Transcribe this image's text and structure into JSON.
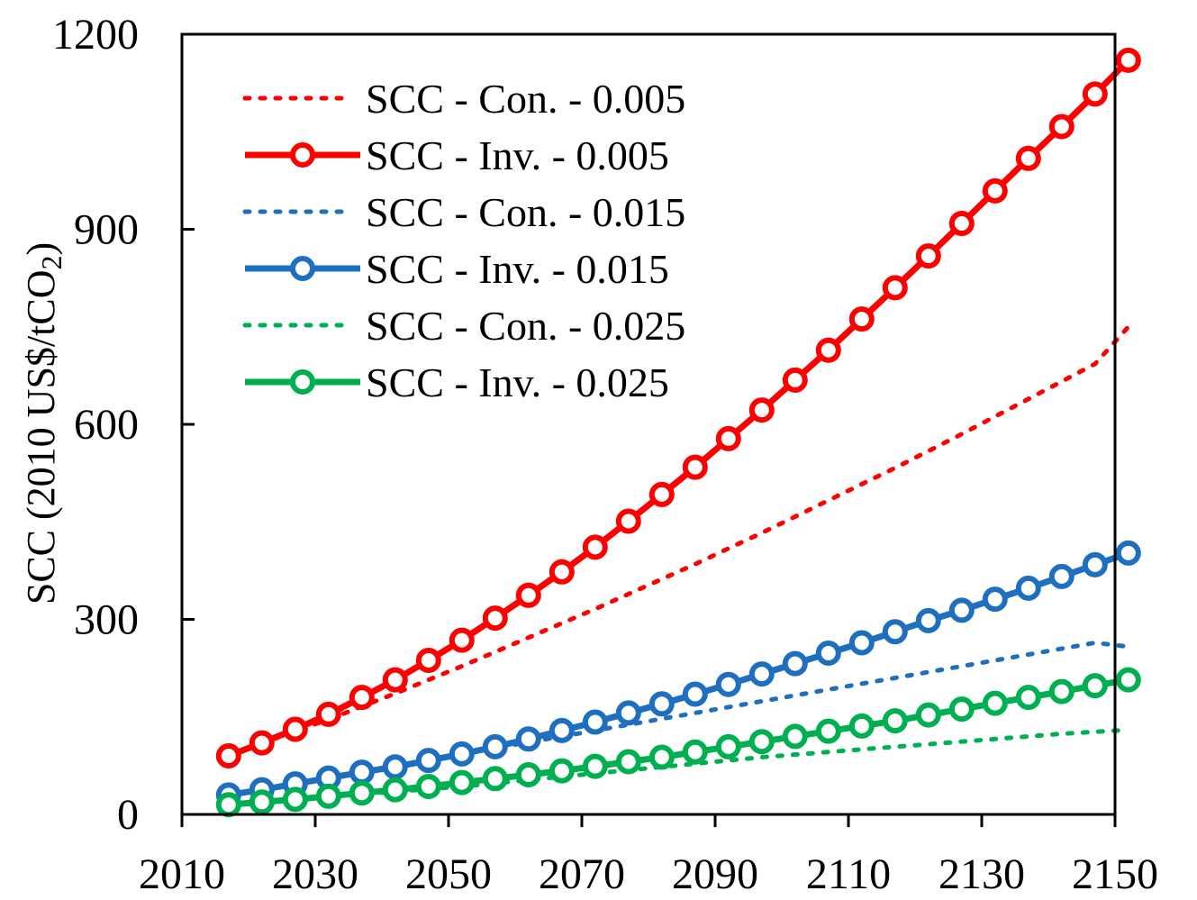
{
  "chart_data": {
    "type": "line",
    "title": "",
    "xlabel": "",
    "ylabel": "SCC (2010 US$/tCO",
    "ylabel_sub": "2",
    "ylabel_end": ")",
    "xlim": [
      2010,
      2150
    ],
    "ylim": [
      0,
      1200
    ],
    "xticks": [
      "2010",
      "2030",
      "2050",
      "2070",
      "2090",
      "2110",
      "2130",
      "2150"
    ],
    "yticks": [
      "0",
      "300",
      "600",
      "900",
      "1200"
    ],
    "x": [
      2017,
      2022,
      2027,
      2032,
      2037,
      2042,
      2047,
      2052,
      2057,
      2062,
      2067,
      2072,
      2077,
      2082,
      2087,
      2092,
      2097,
      2102,
      2107,
      2112,
      2117,
      2122,
      2127,
      2132,
      2137,
      2142,
      2147,
      2152
    ],
    "legend_position": "top-left",
    "series": [
      {
        "name": "SCC - Con. - 0.005",
        "style": "dotted",
        "color": "#ff0000",
        "values": [
          90,
          110,
          128,
          146,
          166,
          186,
          207,
          228,
          250,
          272,
          294,
          316,
          339,
          362,
          385,
          409,
          433,
          458,
          483,
          508,
          533,
          559,
          585,
          612,
          639,
          666,
          693,
          750
        ]
      },
      {
        "name": "SCC - Inv. - 0.005",
        "style": "solid-circle",
        "color": "#ff0000",
        "values": [
          90,
          110,
          131,
          154,
          180,
          207,
          237,
          268,
          302,
          337,
          373,
          411,
          451,
          492,
          534,
          578,
          622,
          668,
          714,
          762,
          810,
          859,
          909,
          959,
          1009,
          1058,
          1108,
          1160
        ]
      },
      {
        "name": "SCC - Con. - 0.015",
        "style": "dotted",
        "color": "#1f6fc0",
        "values": [
          30,
          39,
          48,
          57,
          66,
          75,
          84,
          93,
          102,
          111,
          120,
          129,
          138,
          147,
          156,
          165,
          174,
          183,
          192,
          201,
          210,
          219,
          228,
          237,
          246,
          255,
          264,
          258
        ]
      },
      {
        "name": "SCC - Inv. - 0.015",
        "style": "solid-circle",
        "color": "#1f6fc0",
        "values": [
          30,
          38,
          47,
          56,
          65,
          73,
          83,
          93,
          104,
          116,
          129,
          142,
          156,
          170,
          185,
          200,
          216,
          232,
          248,
          264,
          281,
          298,
          314,
          331,
          348,
          366,
          384,
          402
        ]
      },
      {
        "name": "SCC - Con. - 0.025",
        "style": "dotted",
        "color": "#00b050",
        "values": [
          15,
          19,
          23,
          27,
          31,
          35,
          39,
          43,
          48,
          53,
          58,
          63,
          68,
          73,
          78,
          83,
          88,
          92,
          96,
          100,
          104,
          108,
          112,
          116,
          120,
          124,
          127,
          130
        ]
      },
      {
        "name": "SCC - Inv. - 0.025",
        "style": "solid-circle",
        "color": "#00b050",
        "values": [
          15,
          19,
          23,
          28,
          33,
          38,
          43,
          49,
          55,
          61,
          67,
          74,
          81,
          88,
          96,
          104,
          112,
          120,
          128,
          136,
          144,
          153,
          162,
          171,
          180,
          189,
          198,
          207
        ]
      }
    ]
  }
}
